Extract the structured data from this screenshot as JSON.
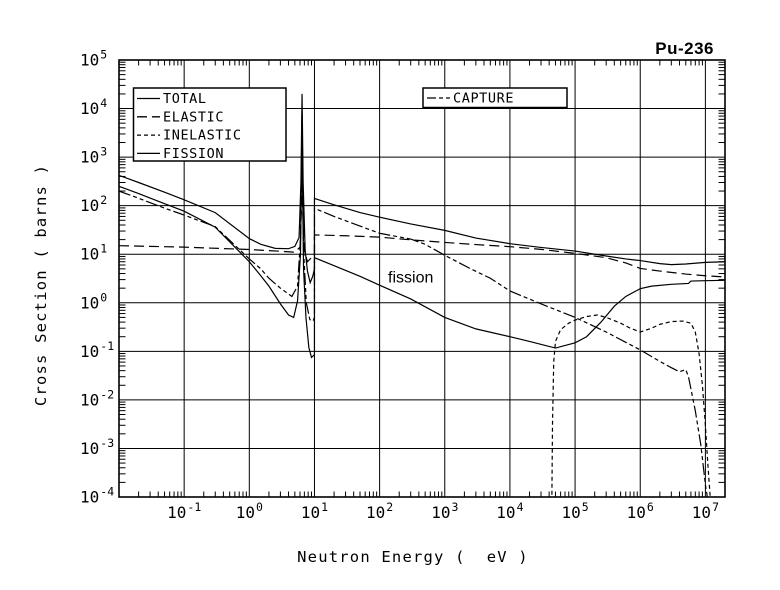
{
  "chart_data": {
    "type": "line",
    "title": "Pu-236",
    "xlabel": "Neutron Energy (  eV )",
    "ylabel": "Cross Section ( barns )",
    "xscale": "log",
    "yscale": "log",
    "xlim": [
      0.01,
      20000000.0
    ],
    "ylim": [
      0.0001,
      100000.0
    ],
    "grid": true,
    "line_color": "#000000",
    "background_color": "#ffffff",
    "x_tick_exponents": [
      -1,
      0,
      1,
      2,
      3,
      4,
      5,
      6,
      7
    ],
    "y_tick_exponents": [
      5,
      4,
      3,
      2,
      1,
      0,
      -1,
      -2,
      -3,
      -4
    ],
    "annotations": [
      {
        "text": "fission",
        "x": 300,
        "y": 2.6
      }
    ],
    "legends": [
      {
        "position": "upper-left",
        "entries": [
          "TOTAL",
          "ELASTIC",
          "INELASTIC",
          "FISSION"
        ]
      },
      {
        "position": "upper-center",
        "entries": [
          "CAPTURE"
        ]
      }
    ],
    "series": [
      {
        "name": "TOTAL",
        "line_style": "solid",
        "points": [
          [
            0.01,
            420
          ],
          [
            0.02,
            300
          ],
          [
            0.05,
            190
          ],
          [
            0.1,
            132
          ],
          [
            0.3,
            72
          ],
          [
            1,
            21
          ],
          [
            1.5,
            16
          ],
          [
            2.5,
            13.2
          ],
          [
            4,
            13
          ],
          [
            5,
            14.5
          ],
          [
            5.8,
            22
          ],
          [
            6.2,
            300
          ],
          [
            6.45,
            20000
          ],
          [
            6.7,
            300
          ],
          [
            7.2,
            12
          ],
          [
            7.8,
            4.5
          ],
          [
            8.6,
            2.6
          ],
          [
            9.4,
            3.5
          ],
          [
            10,
            5
          ],
          [
            10,
            141
          ],
          [
            20,
            104
          ],
          [
            50,
            72
          ],
          [
            100,
            58
          ],
          [
            300,
            42
          ],
          [
            1000,
            31
          ],
          [
            3000,
            21.5
          ],
          [
            10000,
            16.5
          ],
          [
            30000,
            13.8
          ],
          [
            100000,
            11.6
          ],
          [
            300000,
            9.2
          ],
          [
            600000,
            8
          ],
          [
            1000000,
            7.4
          ],
          [
            2000000,
            6.4
          ],
          [
            3000000,
            6.1
          ],
          [
            5000000,
            6.3
          ],
          [
            10000000,
            6.8
          ],
          [
            20000000,
            7
          ]
        ]
      },
      {
        "name": "ELASTIC",
        "line_style": "long-dash",
        "points": [
          [
            0.01,
            15
          ],
          [
            0.1,
            14
          ],
          [
            1,
            12.5
          ],
          [
            3,
            11.5
          ],
          [
            5,
            11
          ],
          [
            6,
            14
          ],
          [
            6.3,
            80
          ],
          [
            6.45,
            250
          ],
          [
            6.6,
            80
          ],
          [
            7,
            12
          ],
          [
            7.8,
            7
          ],
          [
            9,
            8.5
          ],
          [
            10,
            9.5
          ],
          [
            10,
            25
          ],
          [
            30,
            24
          ],
          [
            100,
            22.5
          ],
          [
            300,
            19.8
          ],
          [
            1000,
            17.5
          ],
          [
            3000,
            15.8
          ],
          [
            10000,
            14.3
          ],
          [
            30000,
            12.6
          ],
          [
            100000,
            10.4
          ],
          [
            300000,
            8.5
          ],
          [
            600000,
            6.6
          ],
          [
            1000000,
            5.1
          ],
          [
            2000000,
            4.5
          ],
          [
            5000000,
            3.9
          ],
          [
            10000000,
            3.6
          ],
          [
            20000000,
            3.4
          ]
        ]
      },
      {
        "name": "INELASTIC",
        "line_style": "short-dash",
        "points": [
          [
            44000,
            8e-05
          ],
          [
            45000,
            0.003
          ],
          [
            47000,
            0.06
          ],
          [
            50000,
            0.16
          ],
          [
            60000,
            0.28
          ],
          [
            80000,
            0.38
          ],
          [
            100000,
            0.44
          ],
          [
            150000,
            0.52
          ],
          [
            220000,
            0.56
          ],
          [
            300000,
            0.5
          ],
          [
            500000,
            0.38
          ],
          [
            700000,
            0.3
          ],
          [
            1000000,
            0.25
          ],
          [
            1500000,
            0.3
          ],
          [
            2000000,
            0.36
          ],
          [
            3000000,
            0.41
          ],
          [
            4500000,
            0.42
          ],
          [
            6000000,
            0.38
          ],
          [
            7000000,
            0.25
          ],
          [
            8000000,
            0.09
          ],
          [
            9000000,
            0.02
          ],
          [
            10000000,
            0.003
          ],
          [
            11000000,
            0.0004
          ],
          [
            12000000,
            8e-05
          ]
        ]
      },
      {
        "name": "FISSION",
        "line_style": "solid",
        "points": [
          [
            0.01,
            250
          ],
          [
            0.02,
            178
          ],
          [
            0.05,
            110
          ],
          [
            0.1,
            77
          ],
          [
            0.3,
            36
          ],
          [
            1,
            7
          ],
          [
            1.5,
            3.6
          ],
          [
            2,
            2.2
          ],
          [
            3,
            0.95
          ],
          [
            4,
            0.56
          ],
          [
            4.8,
            0.5
          ],
          [
            5.5,
            1.1
          ],
          [
            6.1,
            10
          ],
          [
            6.45,
            2500
          ],
          [
            6.8,
            5
          ],
          [
            7.4,
            0.5
          ],
          [
            8.2,
            0.12
          ],
          [
            9,
            0.075
          ],
          [
            10,
            0.085
          ],
          [
            10,
            8.5
          ],
          [
            20,
            5.8
          ],
          [
            50,
            3.5
          ],
          [
            100,
            2.3
          ],
          [
            300,
            1.2
          ],
          [
            1000,
            0.5
          ],
          [
            3000,
            0.29
          ],
          [
            10000,
            0.2
          ],
          [
            20000,
            0.16
          ],
          [
            50000,
            0.117
          ],
          [
            100000,
            0.15
          ],
          [
            150000,
            0.2
          ],
          [
            250000,
            0.4
          ],
          [
            400000,
            0.85
          ],
          [
            600000,
            1.35
          ],
          [
            1000000,
            1.95
          ],
          [
            1500000,
            2.2
          ],
          [
            3000000,
            2.4
          ],
          [
            5500000,
            2.5
          ],
          [
            6000000,
            2.8
          ],
          [
            10000000,
            2.85
          ],
          [
            20000000,
            2.9
          ]
        ]
      },
      {
        "name": "CAPTURE",
        "line_style": "dash-dot",
        "points": [
          [
            0.01,
            200
          ],
          [
            0.02,
            142
          ],
          [
            0.05,
            89
          ],
          [
            0.1,
            64
          ],
          [
            0.3,
            37
          ],
          [
            1,
            8
          ],
          [
            1.5,
            5
          ],
          [
            2,
            3.2
          ],
          [
            3,
            2
          ],
          [
            4.5,
            1.35
          ],
          [
            5.5,
            2.2
          ],
          [
            6.1,
            20
          ],
          [
            6.45,
            8000
          ],
          [
            6.8,
            12
          ],
          [
            7.5,
            1
          ],
          [
            8.5,
            0.45
          ],
          [
            9.5,
            0.42
          ],
          [
            10,
            0.5
          ],
          [
            10,
            88
          ],
          [
            20,
            60
          ],
          [
            50,
            38
          ],
          [
            100,
            27
          ],
          [
            300,
            20.5
          ],
          [
            500,
            16
          ],
          [
            1000,
            9.5
          ],
          [
            2500,
            5
          ],
          [
            5000,
            3.2
          ],
          [
            10000,
            1.75
          ],
          [
            30000,
            0.95
          ],
          [
            100000,
            0.5
          ],
          [
            300000,
            0.25
          ],
          [
            1000000,
            0.107
          ],
          [
            2000000,
            0.062
          ],
          [
            3000000,
            0.046
          ],
          [
            4000000,
            0.038
          ],
          [
            5000000,
            0.042
          ],
          [
            5500000,
            0.03
          ],
          [
            7000000,
            0.006
          ],
          [
            8500000,
            0.0012
          ],
          [
            10000000,
            0.00018
          ],
          [
            11000000,
            8e-05
          ]
        ]
      }
    ]
  }
}
